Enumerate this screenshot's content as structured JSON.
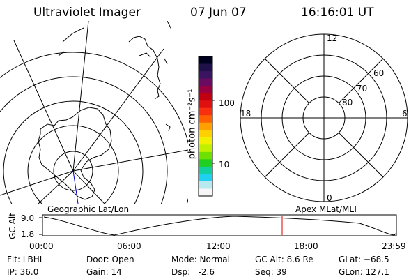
{
  "header": {
    "title": "Ultraviolet Imager",
    "date": "07 Jun 07",
    "time": "16:16:01 UT"
  },
  "colorbar": {
    "label": "photon cm⁻²s⁻¹",
    "ticks": [
      {
        "label": "100",
        "value": 100
      },
      {
        "label": "10",
        "value": 10
      }
    ],
    "range": [
      3,
      500
    ],
    "scale": "log",
    "colors": [
      "#000020",
      "#20104a",
      "#3a1460",
      "#6a0a60",
      "#9a0040",
      "#c00010",
      "#e01010",
      "#f83010",
      "#ff6000",
      "#ffa000",
      "#ffd000",
      "#f0f000",
      "#c0f000",
      "#70e000",
      "#20d020",
      "#10d0a0",
      "#20d0f0",
      "#b8e8f0",
      "#f6f6f6"
    ]
  },
  "geo_panel": {
    "caption": "Geographic Lat/Lon"
  },
  "apex_panel": {
    "caption": "Apex MLat/MLT",
    "mlt_labels": {
      "top": "12",
      "left": "18",
      "right": "6",
      "bottom": "0"
    },
    "mlat_labels": [
      "60",
      "70",
      "80"
    ]
  },
  "altitude_plot": {
    "axis_label": "GC Alt",
    "y_ticks": [
      "9.0",
      "1.8"
    ],
    "x_ticks": [
      "00:00",
      "06:00",
      "12:00",
      "18:00",
      "23:59"
    ],
    "current_marker_color": "#e00000"
  },
  "status": {
    "flt": "Flt: LBHL",
    "ip": "IP: 36.0",
    "door": "Door: Open",
    "gain": "Gain: 14",
    "mode": "Mode: Normal",
    "dsp": "Dsp:   -2.6",
    "gcalt": "GC Alt: 8.6 Re",
    "seq": "Seq: 39",
    "glat": "GLat: −68.5",
    "glon": "GLon: 127.1"
  }
}
